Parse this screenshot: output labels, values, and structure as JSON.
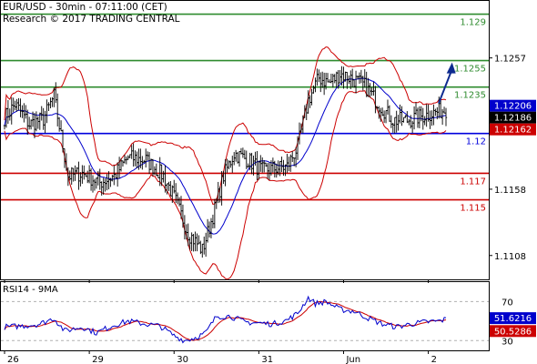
{
  "header": {
    "title": "EUR/USD - 30min - 07:11:00 (CET)",
    "credit": "Research © 2017 TRADING CENTRAL"
  },
  "chart_data": [
    {
      "type": "candlestick",
      "symbol": "EUR/USD",
      "timeframe": "30min",
      "ylim": [
        1.109,
        1.13
      ],
      "y_ticks": [
        {
          "label": "1.1257",
          "value": 1.1257
        },
        {
          "label": "1.1158",
          "value": 1.1158
        },
        {
          "label": "1.1108",
          "value": 1.1108
        }
      ],
      "x_ticks": [
        {
          "label": "26",
          "index": 0
        },
        {
          "label": "29",
          "index": 48
        },
        {
          "label": "30",
          "index": 96
        },
        {
          "label": "31",
          "index": 144
        },
        {
          "label": "Jun",
          "index": 192
        },
        {
          "label": "2",
          "index": 240
        }
      ],
      "levels": [
        {
          "label": "1.129",
          "value": 1.129,
          "color": "#2e8b2e",
          "label_color": "#2e8b2e"
        },
        {
          "label": "1.1255",
          "value": 1.1255,
          "color": "#2e8b2e",
          "label_color": "#2e8b2e"
        },
        {
          "label": "1.1235",
          "value": 1.1235,
          "color": "#2e8b2e",
          "label_color": "#2e8b2e"
        },
        {
          "label": "1.12",
          "value": 1.12,
          "color": "#0000dd",
          "label_color": "#0000dd"
        },
        {
          "label": "1.117",
          "value": 1.117,
          "color": "#cc0000",
          "label_color": "#cc0000"
        },
        {
          "label": "1.115",
          "value": 1.115,
          "color": "#cc0000",
          "label_color": "#cc0000"
        }
      ],
      "price_badges": [
        {
          "label": "1.12206",
          "value": 1.12206,
          "color": "#0000cc"
        },
        {
          "label": "1.12186",
          "value": 1.12186,
          "color": "#000000"
        },
        {
          "label": "1.12162",
          "value": 1.12162,
          "color": "#cc0000"
        }
      ],
      "anchors": [
        [
          0,
          1.1212
        ],
        [
          6,
          1.1222
        ],
        [
          14,
          1.1207
        ],
        [
          22,
          1.1211
        ],
        [
          28,
          1.1228
        ],
        [
          36,
          1.1168
        ],
        [
          44,
          1.117
        ],
        [
          54,
          1.1163
        ],
        [
          62,
          1.1168
        ],
        [
          70,
          1.1182
        ],
        [
          80,
          1.118
        ],
        [
          90,
          1.1168
        ],
        [
          96,
          1.1152
        ],
        [
          104,
          1.1125
        ],
        [
          112,
          1.1112
        ],
        [
          118,
          1.1138
        ],
        [
          124,
          1.1168
        ],
        [
          130,
          1.1185
        ],
        [
          138,
          1.118
        ],
        [
          146,
          1.1172
        ],
        [
          154,
          1.1174
        ],
        [
          160,
          1.1175
        ],
        [
          166,
          1.119
        ],
        [
          172,
          1.1225
        ],
        [
          178,
          1.1242
        ],
        [
          184,
          1.1238
        ],
        [
          190,
          1.1245
        ],
        [
          196,
          1.1242
        ],
        [
          204,
          1.1236
        ],
        [
          212,
          1.1222
        ],
        [
          220,
          1.121
        ],
        [
          228,
          1.121
        ],
        [
          236,
          1.1213
        ],
        [
          244,
          1.1216
        ],
        [
          250,
          1.1218
        ]
      ],
      "forecast_arrow": {
        "from": [
          250,
          1.122
        ],
        "to": [
          255,
          1.1255
        ],
        "color": "#0d2a8f"
      },
      "bollinger_color": "#cc0000",
      "moving_average_color": "#0000cc",
      "candle_color": "#000000"
    },
    {
      "type": "line",
      "title": "RSI14 - 9MA",
      "ylim": [
        20,
        90
      ],
      "y_ticks": [
        {
          "label": "70",
          "value": 70
        },
        {
          "label": "30",
          "value": 30
        }
      ],
      "anchors": [
        [
          0,
          44
        ],
        [
          10,
          45
        ],
        [
          20,
          47
        ],
        [
          28,
          53
        ],
        [
          34,
          40
        ],
        [
          44,
          44
        ],
        [
          52,
          38
        ],
        [
          62,
          46
        ],
        [
          70,
          50
        ],
        [
          80,
          47
        ],
        [
          88,
          45
        ],
        [
          96,
          35
        ],
        [
          102,
          30
        ],
        [
          108,
          33
        ],
        [
          114,
          38
        ],
        [
          120,
          55
        ],
        [
          128,
          55
        ],
        [
          136,
          49
        ],
        [
          144,
          48
        ],
        [
          152,
          47
        ],
        [
          160,
          51
        ],
        [
          166,
          58
        ],
        [
          172,
          74
        ],
        [
          176,
          68
        ],
        [
          182,
          70
        ],
        [
          190,
          62
        ],
        [
          198,
          60
        ],
        [
          206,
          53
        ],
        [
          214,
          47
        ],
        [
          222,
          44
        ],
        [
          230,
          47
        ],
        [
          238,
          49
        ],
        [
          246,
          50
        ],
        [
          250,
          52
        ]
      ],
      "badges": [
        {
          "label": "51.6216",
          "value": 51.6216,
          "color": "#0000cc"
        },
        {
          "label": "50.5286",
          "value": 50.5286,
          "color": "#cc0000"
        }
      ],
      "rsi_color": "#0000cc",
      "ma_color": "#cc0000"
    }
  ]
}
